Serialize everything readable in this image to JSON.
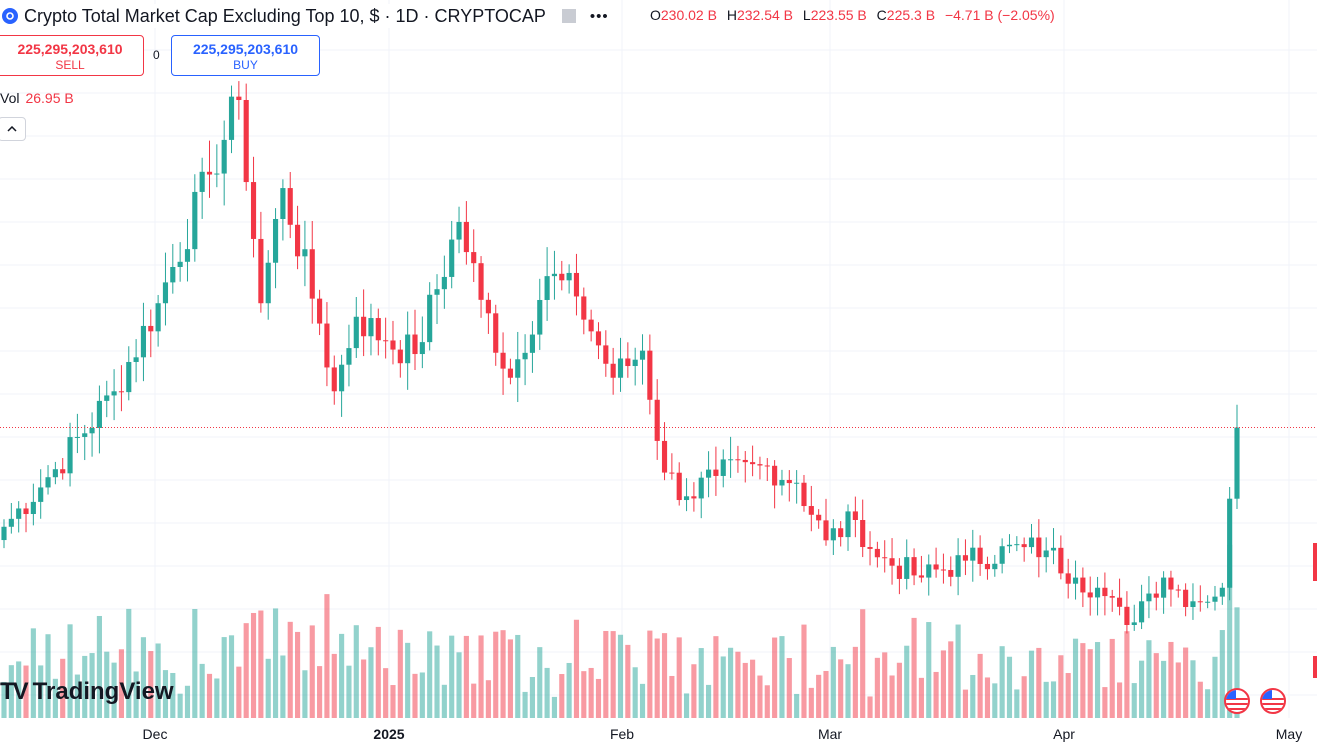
{
  "header": {
    "title": "Crypto Total Market Cap Excluding Top 10, $ · 1D · CRYPTOCAP",
    "ohlc": [
      {
        "label": "O",
        "value": "230.02 B"
      },
      {
        "label": "H",
        "value": "232.54 B"
      },
      {
        "label": "L",
        "value": "223.55 B"
      },
      {
        "label": "C",
        "value": "225.3 B"
      }
    ],
    "change": "−4.71 B (−2.05%)",
    "more_icon": "three-dots-icon",
    "flag_icon": "flag-icon"
  },
  "trade": {
    "sell_price": "225,295,203,610",
    "sell_label": "SELL",
    "spread": "0",
    "buy_price": "225,295,203,610",
    "buy_label": "BUY"
  },
  "volume_legend": {
    "label": "Vol",
    "value": "26.95 B"
  },
  "collapse_icon": "chevron-up-icon",
  "watermark": {
    "logo": "TV",
    "text": "TradingView"
  },
  "xaxis": {
    "labels": [
      "Dec",
      "2025",
      "Feb",
      "Mar",
      "Apr",
      "May"
    ]
  },
  "colors": {
    "up": "#26a69a",
    "down": "#f23645",
    "vol_up": "#26a69a",
    "vol_down": "#f23645",
    "grid": "#f0f3fa",
    "brand": "#2962ff"
  },
  "chart_data": {
    "type": "candlestick",
    "title": "Crypto Total Market Cap Excluding Top 10, $ · 1D · CRYPTOCAP",
    "interval": "1D",
    "x_range": [
      "2024-11-05",
      "2025-04-22"
    ],
    "y_unit": "USD billions",
    "last_close": 225.3,
    "grid": true,
    "keypoints": [
      {
        "date": "2024-11-05",
        "close": 196
      },
      {
        "date": "2024-11-12",
        "close": 213
      },
      {
        "date": "2024-11-20",
        "close": 236
      },
      {
        "date": "2024-11-26",
        "close": 262
      },
      {
        "date": "2024-12-03",
        "close": 300
      },
      {
        "date": "2024-12-07",
        "close": 322
      },
      {
        "date": "2024-12-10",
        "close": 262
      },
      {
        "date": "2024-12-13",
        "close": 296
      },
      {
        "date": "2024-12-18",
        "close": 256
      },
      {
        "date": "2024-12-20",
        "close": 236
      },
      {
        "date": "2024-12-23",
        "close": 258
      },
      {
        "date": "2024-12-27",
        "close": 251
      },
      {
        "date": "2024-12-31",
        "close": 247
      },
      {
        "date": "2025-01-06",
        "close": 286
      },
      {
        "date": "2025-01-09",
        "close": 263
      },
      {
        "date": "2025-01-13",
        "close": 240
      },
      {
        "date": "2025-01-18",
        "close": 270
      },
      {
        "date": "2025-01-22",
        "close": 264
      },
      {
        "date": "2025-01-27",
        "close": 240
      },
      {
        "date": "2025-01-31",
        "close": 248
      },
      {
        "date": "2025-02-03",
        "close": 212
      },
      {
        "date": "2025-02-06",
        "close": 205
      },
      {
        "date": "2025-02-10",
        "close": 211
      },
      {
        "date": "2025-02-17",
        "close": 214
      },
      {
        "date": "2025-02-21",
        "close": 209
      },
      {
        "date": "2025-02-25",
        "close": 192
      },
      {
        "date": "2025-03-01",
        "close": 198
      },
      {
        "date": "2025-03-04",
        "close": 187
      },
      {
        "date": "2025-03-10",
        "close": 181
      },
      {
        "date": "2025-03-16",
        "close": 186
      },
      {
        "date": "2025-03-24",
        "close": 190
      },
      {
        "date": "2025-03-27",
        "close": 189
      },
      {
        "date": "2025-03-31",
        "close": 181
      },
      {
        "date": "2025-04-03",
        "close": 178
      },
      {
        "date": "2025-04-07",
        "close": 167
      },
      {
        "date": "2025-04-09",
        "close": 174
      },
      {
        "date": "2025-04-12",
        "close": 181
      },
      {
        "date": "2025-04-16",
        "close": 174
      },
      {
        "date": "2025-04-20",
        "close": 178
      },
      {
        "date": "2025-04-22",
        "close": 225.3
      }
    ]
  }
}
